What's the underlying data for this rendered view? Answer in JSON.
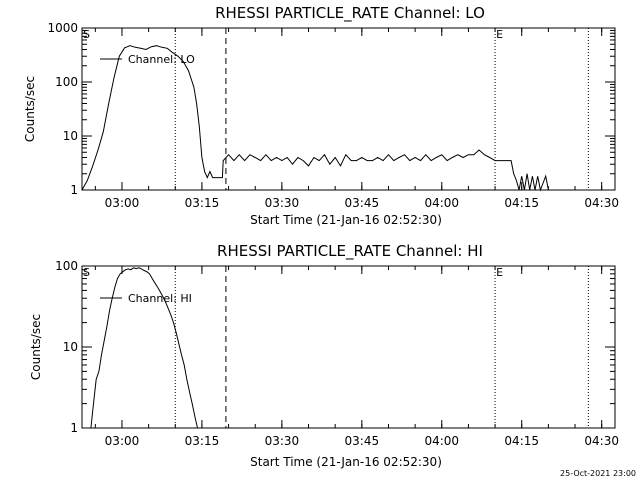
{
  "chart_data": [
    {
      "type": "line",
      "title": "RHESSI PARTICLE_RATE Channel: LO",
      "xlabel": "Start Time (21-Jan-16 02:52:30)",
      "ylabel": "Counts/sec",
      "yscale": "log",
      "xlim": [
        "02:52:30",
        "04:32:30"
      ],
      "ylim": [
        1,
        1000
      ],
      "x_ticks": [
        "03:00",
        "03:15",
        "03:30",
        "03:45",
        "04:00",
        "04:15",
        "04:30"
      ],
      "y_ticks": [
        "1",
        "10",
        "100",
        "1000"
      ],
      "legend": {
        "label": "Channel: LO",
        "position": "top-left"
      },
      "markers": [
        {
          "label": "S",
          "x": "02:52:30",
          "style": "none"
        },
        {
          "label": "",
          "x": "03:10:00",
          "style": "dotted"
        },
        {
          "label": "",
          "x": "03:19:30",
          "style": "dashed"
        },
        {
          "label": "E",
          "x": "04:10:00",
          "style": "dotted"
        },
        {
          "label": "",
          "x": "04:27:30",
          "style": "dotted"
        }
      ],
      "series": [
        {
          "name": "Channel: LO",
          "points": [
            [
              "02:52:30",
              1.0
            ],
            [
              "02:53:30",
              1.5
            ],
            [
              "02:54:30",
              2.8
            ],
            [
              "02:55:30",
              5.5
            ],
            [
              "02:56:30",
              12
            ],
            [
              "02:57:30",
              40
            ],
            [
              "02:58:30",
              120
            ],
            [
              "02:59:30",
              300
            ],
            [
              "03:00:30",
              430
            ],
            [
              "03:01:30",
              470
            ],
            [
              "03:02:30",
              440
            ],
            [
              "03:03:30",
              420
            ],
            [
              "03:04:30",
              400
            ],
            [
              "03:05:30",
              450
            ],
            [
              "03:06:30",
              470
            ],
            [
              "03:07:30",
              440
            ],
            [
              "03:08:30",
              420
            ],
            [
              "03:09:30",
              350
            ],
            [
              "03:10:30",
              300
            ],
            [
              "03:11:30",
              240
            ],
            [
              "03:12:30",
              160
            ],
            [
              "03:13:30",
              80
            ],
            [
              "03:14:00",
              40
            ],
            [
              "03:14:30",
              15
            ],
            [
              "03:15:00",
              4
            ],
            [
              "03:15:30",
              2.2
            ],
            [
              "03:16:00",
              1.7
            ],
            [
              "03:16:30",
              2.2
            ],
            [
              "03:17:00",
              1.7
            ],
            [
              "03:17:30",
              1.7
            ],
            [
              "03:18:00",
              1.7
            ],
            [
              "03:18:30",
              1.7
            ],
            [
              "03:18:50",
              1.7
            ],
            [
              "03:19:00",
              3.5
            ],
            [
              "03:20:00",
              4.5
            ],
            [
              "03:21:00",
              3.5
            ],
            [
              "03:22:00",
              4.5
            ],
            [
              "03:23:00",
              3.5
            ],
            [
              "03:24:00",
              4.5
            ],
            [
              "03:25:00",
              4.0
            ],
            [
              "03:26:00",
              3.5
            ],
            [
              "03:27:00",
              4.5
            ],
            [
              "03:28:00",
              3.5
            ],
            [
              "03:29:00",
              4.0
            ],
            [
              "03:30:00",
              3.5
            ],
            [
              "03:31:00",
              4.0
            ],
            [
              "03:32:00",
              3.0
            ],
            [
              "03:33:00",
              4.0
            ],
            [
              "03:34:00",
              3.5
            ],
            [
              "03:35:00",
              2.8
            ],
            [
              "03:36:00",
              4.0
            ],
            [
              "03:37:00",
              3.5
            ],
            [
              "03:38:00",
              4.5
            ],
            [
              "03:39:00",
              3.0
            ],
            [
              "03:40:00",
              4.0
            ],
            [
              "03:41:00",
              2.8
            ],
            [
              "03:42:00",
              4.5
            ],
            [
              "03:43:00",
              3.5
            ],
            [
              "03:44:00",
              3.5
            ],
            [
              "03:45:00",
              4.0
            ],
            [
              "03:46:00",
              3.5
            ],
            [
              "03:47:00",
              3.5
            ],
            [
              "03:48:00",
              4.0
            ],
            [
              "03:49:00",
              3.5
            ],
            [
              "03:50:00",
              4.5
            ],
            [
              "03:51:00",
              3.5
            ],
            [
              "03:52:00",
              4.0
            ],
            [
              "03:53:00",
              4.5
            ],
            [
              "03:54:00",
              3.5
            ],
            [
              "03:55:00",
              4.0
            ],
            [
              "03:56:00",
              3.5
            ],
            [
              "03:57:00",
              4.5
            ],
            [
              "03:58:00",
              3.5
            ],
            [
              "03:59:00",
              4.0
            ],
            [
              "04:00:00",
              4.5
            ],
            [
              "04:01:00",
              3.5
            ],
            [
              "04:02:00",
              4.0
            ],
            [
              "04:03:00",
              4.5
            ],
            [
              "04:04:00",
              4.0
            ],
            [
              "04:05:00",
              4.5
            ],
            [
              "04:06:00",
              4.5
            ],
            [
              "04:07:00",
              5.5
            ],
            [
              "04:08:00",
              4.5
            ],
            [
              "04:09:00",
              4.0
            ],
            [
              "04:10:00",
              3.5
            ],
            [
              "04:11:00",
              3.5
            ],
            [
              "04:12:00",
              3.5
            ],
            [
              "04:13:00",
              3.5
            ],
            [
              "04:13:30",
              2.0
            ],
            [
              "04:14:00",
              1.5
            ],
            [
              "04:14:30",
              1.0
            ],
            [
              "04:15:00",
              1.8
            ],
            [
              "04:15:30",
              1.0
            ],
            [
              "04:16:00",
              2.0
            ],
            [
              "04:16:30",
              1.0
            ],
            [
              "04:17:00",
              1.8
            ],
            [
              "04:17:30",
              1.0
            ],
            [
              "04:18:00",
              1.8
            ],
            [
              "04:18:30",
              1.0
            ],
            [
              "04:19:30",
              1.8
            ],
            [
              "04:20:00",
              1.0
            ]
          ]
        }
      ]
    },
    {
      "type": "line",
      "title": "RHESSI PARTICLE_RATE Channel: HI",
      "xlabel": "Start Time (21-Jan-16 02:52:30)",
      "ylabel": "Counts/sec",
      "yscale": "log",
      "xlim": [
        "02:52:30",
        "04:32:30"
      ],
      "ylim": [
        1,
        100
      ],
      "x_ticks": [
        "03:00",
        "03:15",
        "03:30",
        "03:45",
        "04:00",
        "04:15",
        "04:30"
      ],
      "y_ticks": [
        "1",
        "10",
        "100"
      ],
      "legend": {
        "label": "Channel: HI",
        "position": "top-left"
      },
      "markers": [
        {
          "label": "S",
          "x": "02:52:30",
          "style": "none"
        },
        {
          "label": "",
          "x": "03:10:00",
          "style": "dotted"
        },
        {
          "label": "",
          "x": "03:19:30",
          "style": "dashed"
        },
        {
          "label": "E",
          "x": "04:10:00",
          "style": "dotted"
        },
        {
          "label": "",
          "x": "04:27:30",
          "style": "dotted"
        }
      ],
      "series": [
        {
          "name": "Channel: HI",
          "points": [
            [
              "02:54:10",
              1.0
            ],
            [
              "02:54:40",
              2.0
            ],
            [
              "02:55:10",
              4.0
            ],
            [
              "02:55:40",
              5.0
            ],
            [
              "02:56:10",
              8.0
            ],
            [
              "02:56:40",
              12
            ],
            [
              "02:57:10",
              18
            ],
            [
              "02:57:40",
              28
            ],
            [
              "02:58:10",
              40
            ],
            [
              "02:58:40",
              55
            ],
            [
              "02:59:10",
              70
            ],
            [
              "02:59:40",
              80
            ],
            [
              "03:00:10",
              85
            ],
            [
              "03:00:40",
              90
            ],
            [
              "03:01:10",
              92
            ],
            [
              "03:01:40",
              90
            ],
            [
              "03:02:10",
              95
            ],
            [
              "03:02:40",
              93
            ],
            [
              "03:03:10",
              95
            ],
            [
              "03:03:40",
              92
            ],
            [
              "03:04:10",
              88
            ],
            [
              "03:04:40",
              85
            ],
            [
              "03:05:10",
              80
            ],
            [
              "03:05:40",
              70
            ],
            [
              "03:06:10",
              62
            ],
            [
              "03:06:40",
              55
            ],
            [
              "03:07:10",
              48
            ],
            [
              "03:07:40",
              42
            ],
            [
              "03:08:10",
              36
            ],
            [
              "03:08:40",
              30
            ],
            [
              "03:09:10",
              25
            ],
            [
              "03:09:40",
              20
            ],
            [
              "03:10:10",
              15
            ],
            [
              "03:10:40",
              11
            ],
            [
              "03:11:10",
              8
            ],
            [
              "03:11:40",
              6
            ],
            [
              "03:12:10",
              4
            ],
            [
              "03:12:40",
              2.8
            ],
            [
              "03:13:10",
              2
            ],
            [
              "03:13:40",
              1.4
            ],
            [
              "03:14:10",
              1.0
            ]
          ]
        }
      ]
    }
  ],
  "footer": {
    "timestamp": "25-Oct-2021 23:00"
  }
}
